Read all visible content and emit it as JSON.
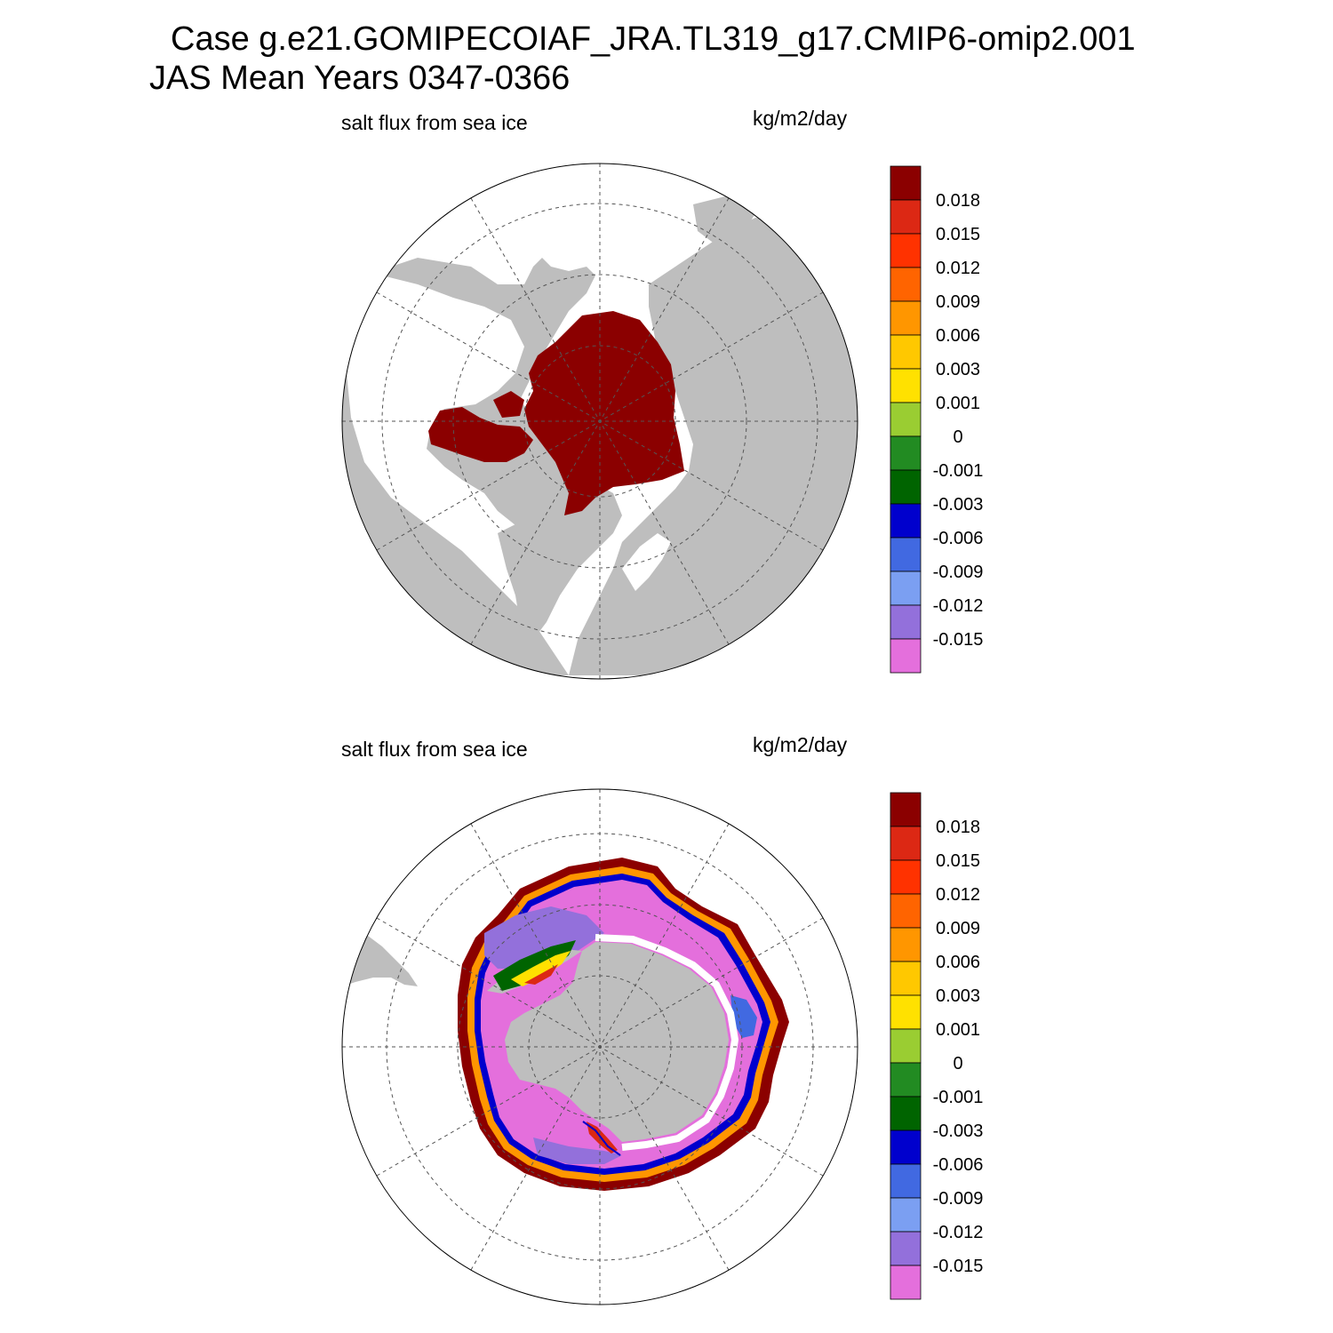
{
  "title": {
    "line1": "Case g.e21.GOMIPECOIAF_JRA.TL319_g17.CMIP6-omip2.001",
    "line2": "JAS Mean   Years 0347-0366"
  },
  "colors": {
    "land": "#bebebe",
    "ocean": "#ffffff",
    "grid": "#555555",
    "levels": [
      "#e46fdc",
      "#9370db",
      "#7b9ff2",
      "#4169e1",
      "#0000cd",
      "#006400",
      "#228b22",
      "#9acd32",
      "#ffe100",
      "#ffc800",
      "#ff9600",
      "#ff6400",
      "#ff3200",
      "#dc2814",
      "#8b0000"
    ]
  },
  "chart_data": [
    {
      "type": "heatmap",
      "hemisphere": "north",
      "projection": "polar-stereographic",
      "left_label": "salt flux from sea ice",
      "right_label": "kg/m2/day",
      "colorbar_labels": [
        "0.018",
        "0.015",
        "0.012",
        "0.009",
        "0.006",
        "0.003",
        "0.001",
        "0",
        "-0.001",
        "-0.003",
        "-0.006",
        "-0.009",
        "-0.012",
        "-0.015"
      ],
      "field_summary": {
        "dominant_value_range": "> 0.018",
        "region": "Arctic Ocean basin and Canadian Archipelago, Hudson Bay"
      }
    },
    {
      "type": "heatmap",
      "hemisphere": "south",
      "projection": "polar-stereographic",
      "left_label": "salt flux from sea ice",
      "right_label": "kg/m2/day",
      "colorbar_labels": [
        "0.018",
        "0.015",
        "0.012",
        "0.009",
        "0.006",
        "0.003",
        "0.001",
        "0",
        "-0.001",
        "-0.003",
        "-0.006",
        "-0.009",
        "-0.012",
        "-0.015"
      ],
      "field_summary": {
        "outer_ring_value_range": "> 0.018",
        "interior_value_range": "< -0.015 to -0.009",
        "region": "Southern Ocean sea-ice zone around Antarctica"
      }
    }
  ]
}
